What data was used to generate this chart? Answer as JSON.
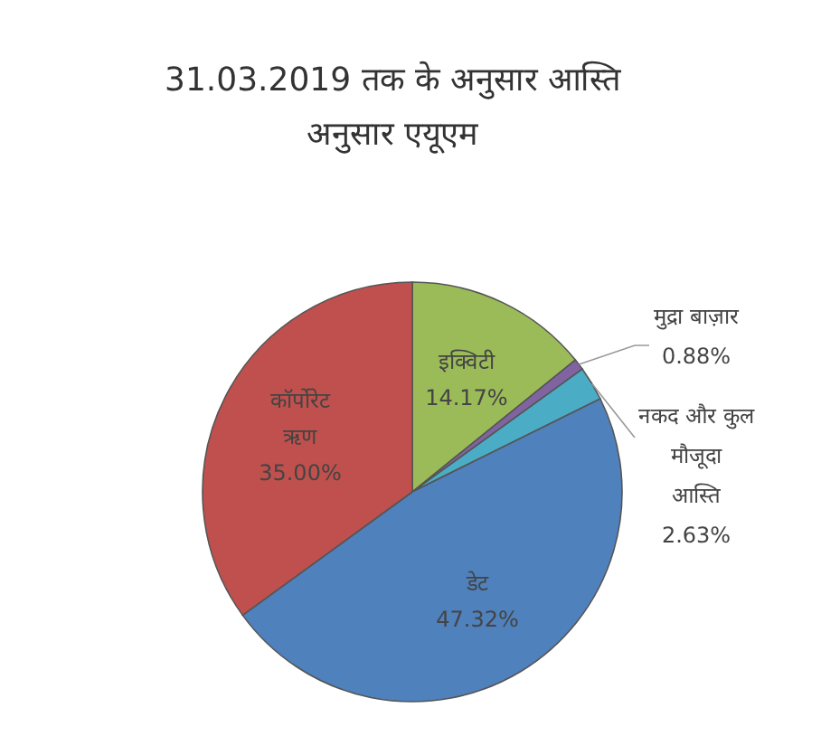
{
  "chart_data": {
    "type": "pie",
    "title": "31.03.2019 तक के अनुसार आस्ति अनुसार एयूएम",
    "categories": [
      "इक्विटी",
      "मुद्रा बाज़ार",
      "नकद और कुल मौजूदा आस्ति",
      "डेट",
      "कॉर्पोरेट ऋण"
    ],
    "values": [
      14.17,
      0.88,
      2.63,
      47.32,
      35.0
    ],
    "value_labels": [
      "14.17%",
      "0.88%",
      "2.63%",
      "47.32%",
      "35.00%"
    ],
    "colors": [
      "#9bbb59",
      "#8064a2",
      "#4bacc6",
      "#4f81bd",
      "#c0504d"
    ]
  }
}
